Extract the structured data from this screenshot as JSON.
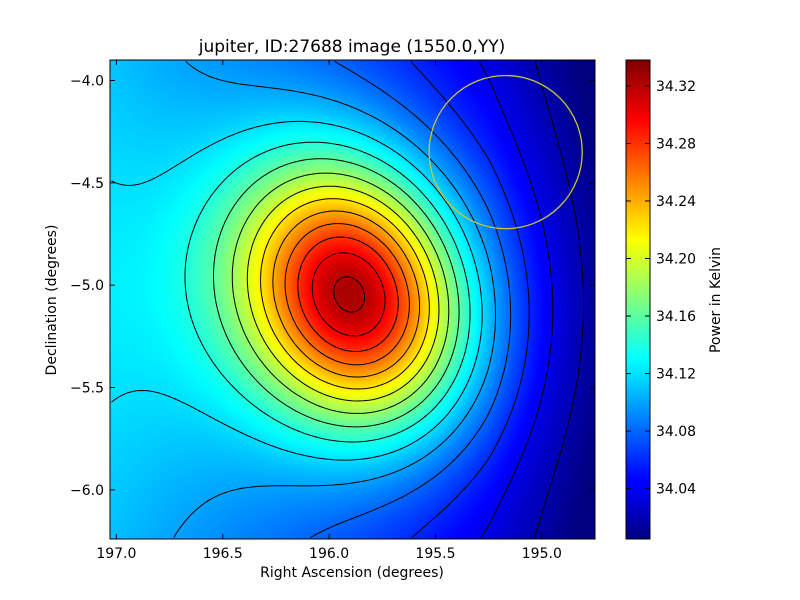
{
  "chart_data": {
    "type": "heatmap",
    "title": "jupiter, ID:27688 image (1550.0,YY)",
    "xlabel": "Right Ascension (degrees)",
    "ylabel": "Declination (degrees)",
    "xlim": [
      197.03,
      194.75
    ],
    "ylim": [
      -6.24,
      -3.9
    ],
    "x_ticks": [
      197.0,
      196.5,
      196.0,
      195.5,
      195.0
    ],
    "x_tick_labels": [
      "197.0",
      "196.5",
      "196.0",
      "195.5",
      "195.0"
    ],
    "y_ticks": [
      -4.0,
      -4.5,
      -5.0,
      -5.5,
      -6.0
    ],
    "y_tick_labels": [
      "−4.0",
      "−4.5",
      "−5.0",
      "−5.5",
      "−6.0"
    ],
    "colorbar": {
      "label": "Power in Kelvin",
      "vmin": 34.005,
      "vmax": 34.338,
      "colormap": "jet",
      "ticks": [
        34.04,
        34.08,
        34.12,
        34.16,
        34.2,
        34.24,
        34.28,
        34.32
      ],
      "tick_labels": [
        "34.04",
        "34.08",
        "34.12",
        "34.16",
        "34.20",
        "34.24",
        "34.28",
        "34.32"
      ]
    },
    "peak": {
      "ra": 195.88,
      "dec": -5.05,
      "value": 34.335
    },
    "circle": {
      "ra_center": 195.17,
      "dec_center": -4.35,
      "radius_deg": 0.36,
      "color": "#c8c832"
    },
    "contour_step": 0.02
  }
}
